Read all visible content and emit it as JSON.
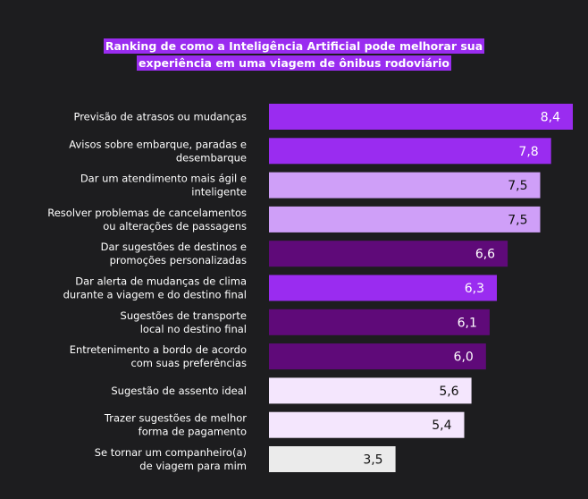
{
  "chart_data": {
    "type": "bar",
    "orientation": "horizontal",
    "title_lines": [
      "Ranking de como  a Inteligência Artificial pode melhorar sua",
      "experiência em uma viagem de ônibus rodoviário"
    ],
    "categories": [
      [
        "Previsão de atrasos ou mudanças"
      ],
      [
        "Avisos sobre embarque, paradas e",
        "desembarque"
      ],
      [
        "Dar um atendimento mais ágil e",
        "inteligente"
      ],
      [
        "Resolver problemas de cancelamentos",
        "ou alterações de passagens"
      ],
      [
        "Dar sugestões de destinos e",
        "promoções personalizadas"
      ],
      [
        "Dar alerta de mudanças de clima",
        "durante a viagem e do destino final"
      ],
      [
        "Sugestões de transporte",
        "local no destino final"
      ],
      [
        "Entretenimento a bordo de acordo",
        "com suas preferências"
      ],
      [
        "Sugestão de assento ideal"
      ],
      [
        "Trazer sugestões de melhor",
        "forma de pagamento"
      ],
      [
        "Se tornar um companheiro(a)",
        "de viagem para mim"
      ]
    ],
    "values": [
      8.4,
      7.8,
      7.5,
      7.5,
      6.6,
      6.3,
      6.1,
      6.0,
      5.6,
      5.4,
      3.5
    ],
    "value_labels": [
      "8,4",
      "7,8",
      "7,5",
      "7,5",
      "6,6",
      "6,3",
      "6,1",
      "6,0",
      "5,6",
      "5,4",
      "3,5"
    ],
    "bar_colors": [
      "#9a2cf0",
      "#9a2cf0",
      "#cf9ff8",
      "#cf9ff8",
      "#5f0a79",
      "#9a2cf0",
      "#5f0a79",
      "#5f0a79",
      "#f4e6fd",
      "#f4e6fd",
      "#ebebeb"
    ],
    "value_label_colors": [
      "#ffffff",
      "#ffffff",
      "#111111",
      "#111111",
      "#ffffff",
      "#ffffff",
      "#ffffff",
      "#ffffff",
      "#111111",
      "#111111",
      "#111111"
    ],
    "xlim": [
      0,
      8.5
    ],
    "axes_visible": false,
    "grid": false
  }
}
